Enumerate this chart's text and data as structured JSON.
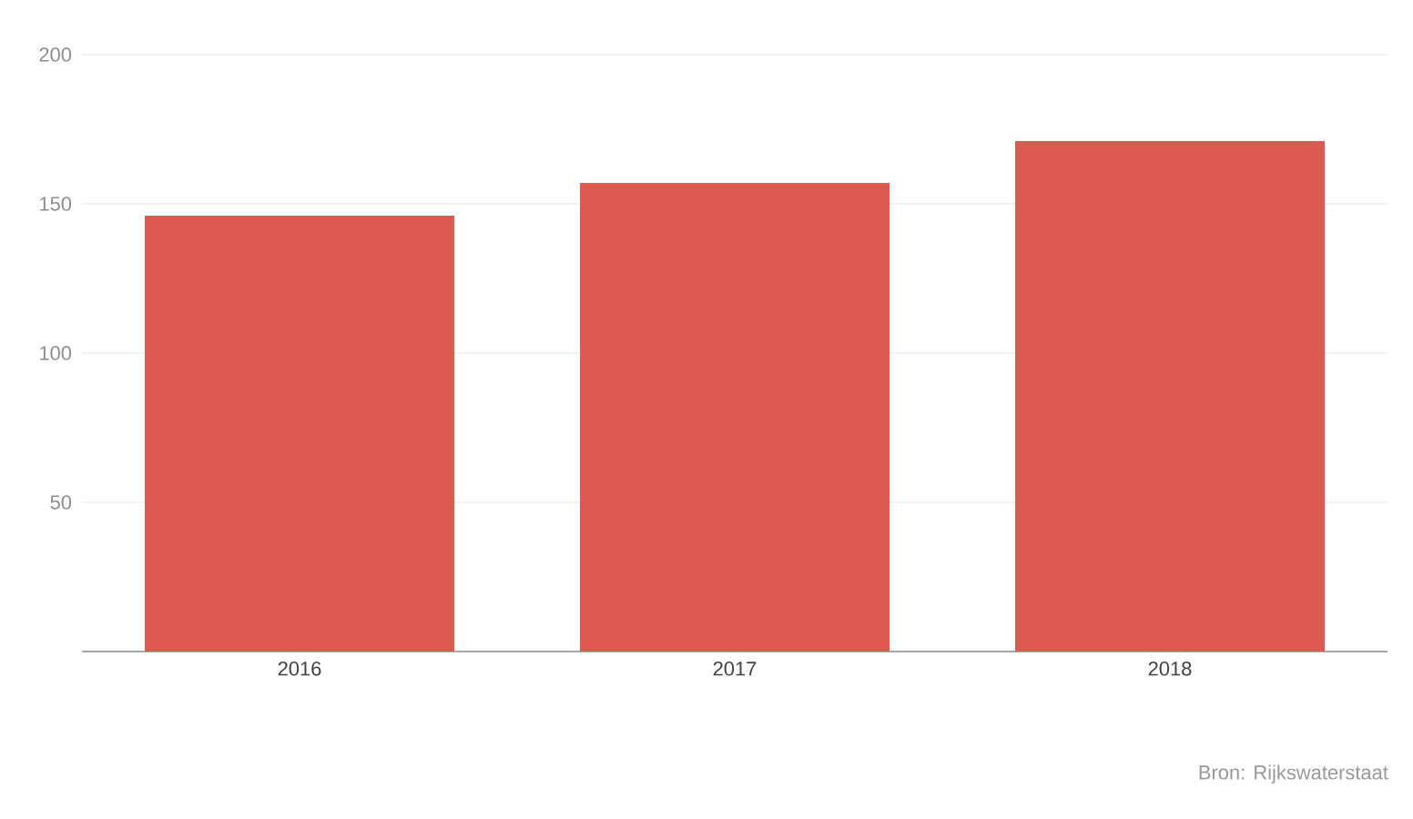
{
  "chart_data": {
    "type": "bar",
    "categories": [
      "2016",
      "2017",
      "2018"
    ],
    "values": [
      146,
      157,
      171
    ],
    "color": "#dc5a50",
    "ylim": [
      0,
      200
    ],
    "yticks": [
      50,
      100,
      150,
      200
    ],
    "grid": "y",
    "annotations": [
      "Bron: Rijkswaterstaat"
    ]
  }
}
